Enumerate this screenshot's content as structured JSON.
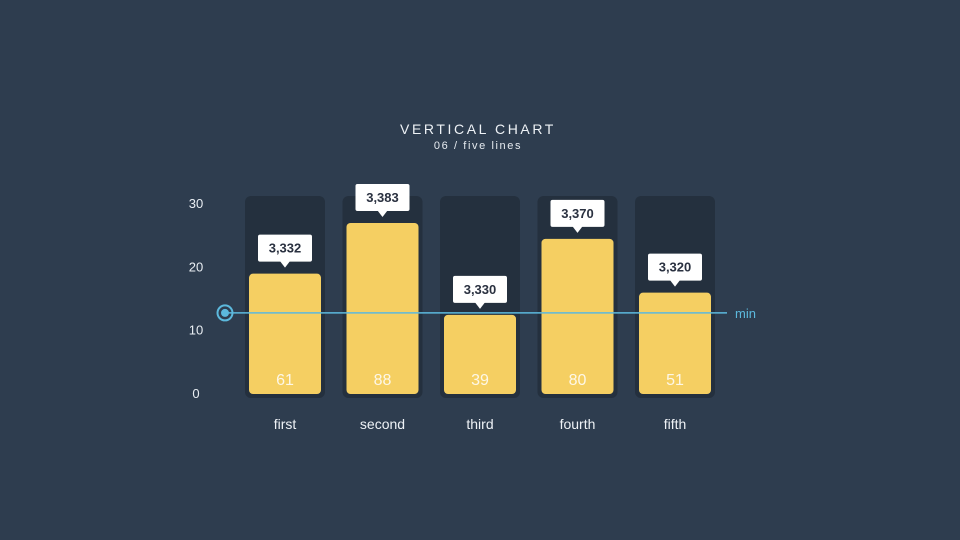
{
  "chart_data": {
    "type": "bar",
    "title": "VERTICAL CHART",
    "subtitle": "06 / five lines",
    "categories": [
      "first",
      "second",
      "third",
      "fourth",
      "fifth"
    ],
    "values": [
      19,
      27,
      12.5,
      24.5,
      16
    ],
    "bar_labels": [
      "61",
      "88",
      "39",
      "80",
      "51"
    ],
    "callouts": [
      "3,332",
      "3,383",
      "3,330",
      "3,370",
      "3,320"
    ],
    "ylim": [
      0,
      30
    ],
    "yticks": [
      0,
      10,
      20,
      30
    ],
    "grid": false,
    "reference_line": {
      "label": "min",
      "value": 12.8
    },
    "colors": {
      "background": "#2e3d4f",
      "track": "#24303e",
      "bar": "#f5cf62",
      "callout": "#ffffff",
      "line": "#5cb9dd"
    }
  }
}
